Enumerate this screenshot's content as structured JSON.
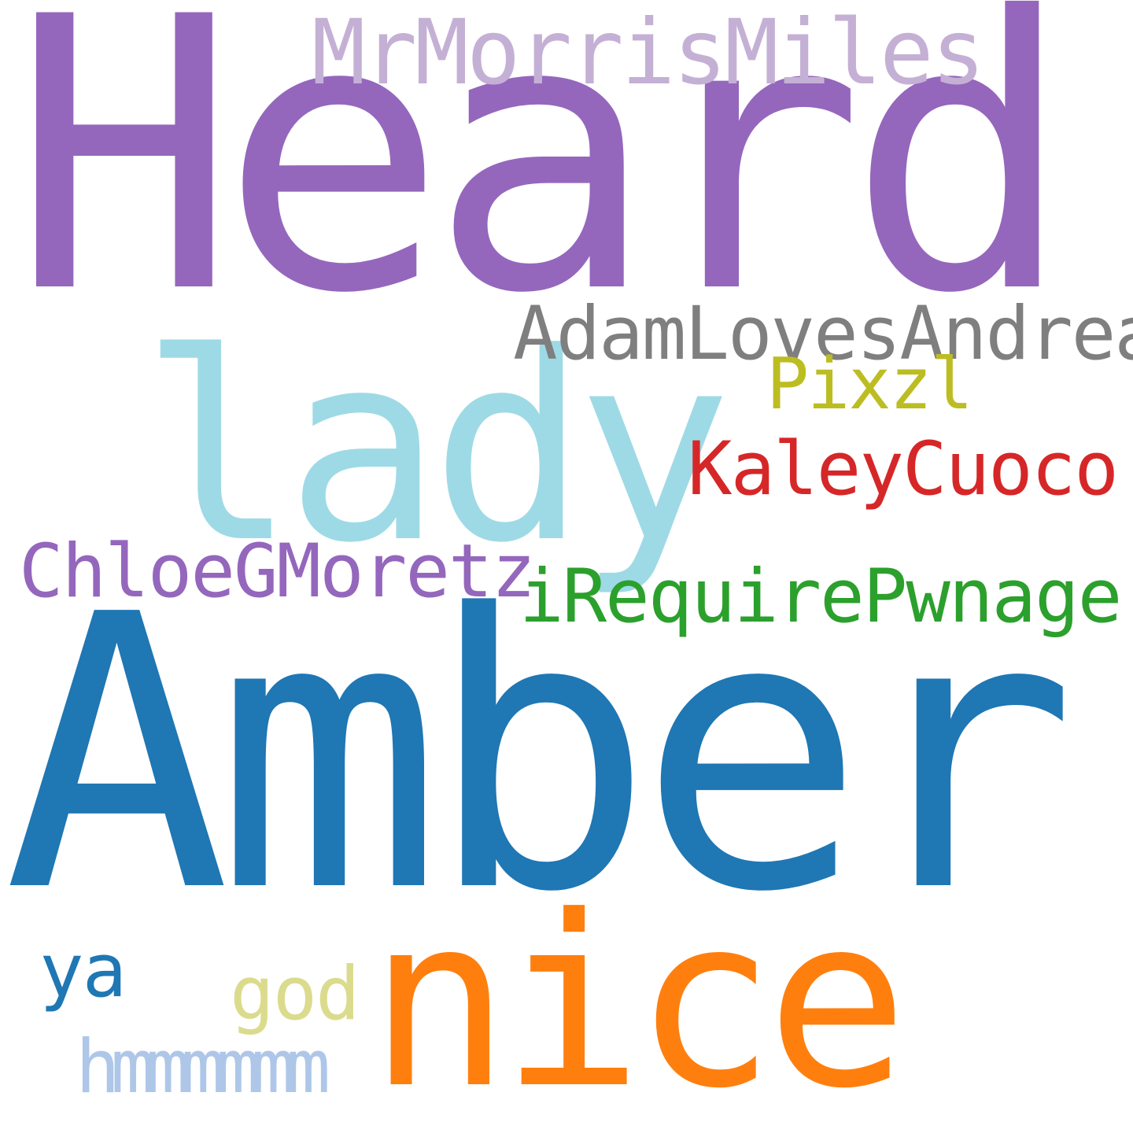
{
  "word_cloud": {
    "background": "#ffffff",
    "words": [
      {
        "text": "Heard",
        "color": "#9467bd"
      },
      {
        "text": "MrMorrisMiles",
        "color": "#c5b0d5"
      },
      {
        "text": "lady",
        "color": "#9edae5"
      },
      {
        "text": "AdamLovesAndrea",
        "color": "#7f7f7f"
      },
      {
        "text": "Pixzl",
        "color": "#bcbd22"
      },
      {
        "text": "KaleyCuoco",
        "color": "#d62728"
      },
      {
        "text": "ChloeGMoretz",
        "color": "#9467bd"
      },
      {
        "text": "iRequirePwnage",
        "color": "#2ca02c"
      },
      {
        "text": "Amber",
        "color": "#1f77b4"
      },
      {
        "text": "nice",
        "color": "#ff7f0e"
      },
      {
        "text": "ya",
        "color": "#1f77b4"
      },
      {
        "text": "god",
        "color": "#dbdb8d"
      },
      {
        "text": "hmmmmmm",
        "color": "#aec7e8"
      }
    ]
  }
}
